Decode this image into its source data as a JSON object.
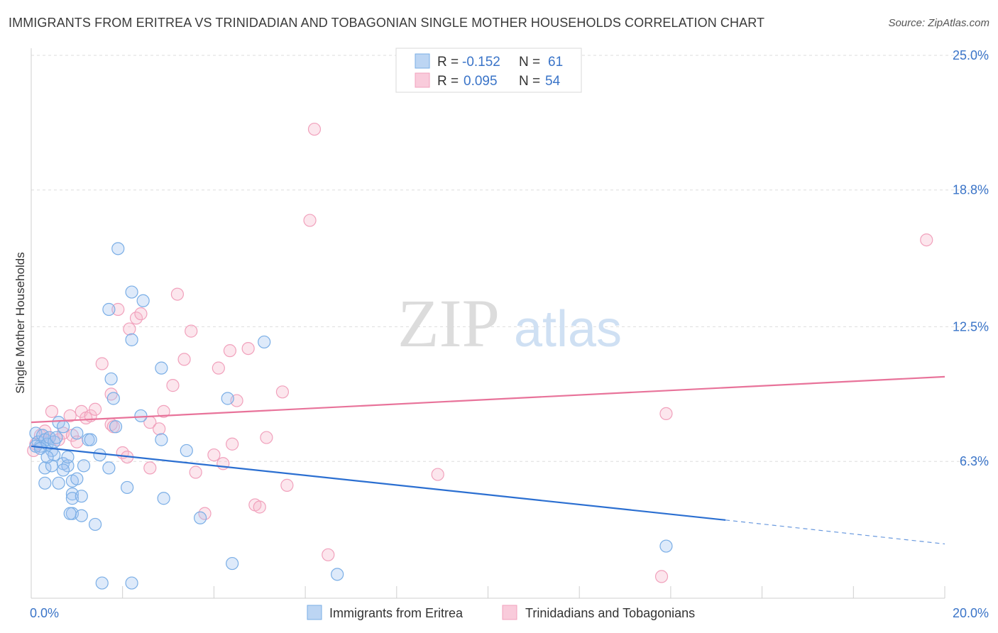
{
  "title": "IMMIGRANTS FROM ERITREA VS TRINIDADIAN AND TOBAGONIAN SINGLE MOTHER HOUSEHOLDS CORRELATION CHART",
  "source": "Source: ZipAtlas.com",
  "watermark": {
    "zip": "ZIP",
    "atlas": "atlas"
  },
  "colors": {
    "blue": "#7aaee6",
    "blue_line": "#2b6fd1",
    "pink": "#f1a1bc",
    "pink_line": "#e8739a",
    "axis_text": "#3a74c8"
  },
  "legend_top": [
    {
      "r_label": "R = ",
      "r_value": "-0.152",
      "n_label": "N = ",
      "n_value": "61",
      "color": "blue"
    },
    {
      "r_label": "R = ",
      "r_value": "0.095",
      "n_label": "N = ",
      "n_value": "54",
      "color": "pink"
    }
  ],
  "legend_bottom": [
    {
      "label": "Immigrants from Eritrea",
      "color": "blue"
    },
    {
      "label": "Trinidadians and Tobagonians",
      "color": "pink"
    }
  ],
  "chart_data": {
    "type": "scatter",
    "title": "IMMIGRANTS FROM ERITREA VS TRINIDADIAN AND TOBAGONIAN SINGLE MOTHER HOUSEHOLDS CORRELATION CHART",
    "ylabel": "Single Mother Households",
    "xlim": [
      0,
      20
    ],
    "ylim": [
      0,
      25
    ],
    "x_tick_labels": [
      {
        "value": 0,
        "label": "0.0%"
      },
      {
        "value": 20,
        "label": "20.0%"
      }
    ],
    "y_tick_labels": [
      {
        "value": 6.3,
        "label": "6.3%"
      },
      {
        "value": 12.5,
        "label": "12.5%"
      },
      {
        "value": 18.8,
        "label": "18.8%"
      },
      {
        "value": 25.0,
        "label": "25.0%"
      }
    ],
    "grid": true,
    "series": [
      {
        "name": "Immigrants from Eritrea",
        "color": "blue",
        "trend": {
          "x0": 0,
          "y0": 7.0,
          "x1": 15.2,
          "y1": 3.6,
          "x_end": 20,
          "y_end": 2.5
        },
        "points": [
          [
            0.1,
            7.6
          ],
          [
            0.15,
            7.2
          ],
          [
            0.2,
            7.0
          ],
          [
            0.25,
            7.5
          ],
          [
            0.3,
            7.3
          ],
          [
            0.35,
            7.1
          ],
          [
            0.4,
            7.4
          ],
          [
            0.45,
            6.8
          ],
          [
            0.5,
            7.2
          ],
          [
            0.55,
            7.4
          ],
          [
            0.6,
            8.1
          ],
          [
            0.7,
            7.9
          ],
          [
            0.5,
            6.6
          ],
          [
            0.3,
            6.0
          ],
          [
            0.45,
            6.1
          ],
          [
            0.7,
            6.2
          ],
          [
            0.8,
            6.1
          ],
          [
            0.7,
            5.9
          ],
          [
            0.6,
            5.3
          ],
          [
            0.3,
            5.3
          ],
          [
            0.9,
            5.4
          ],
          [
            1.0,
            5.5
          ],
          [
            0.9,
            4.8
          ],
          [
            0.9,
            4.6
          ],
          [
            1.15,
            6.1
          ],
          [
            0.9,
            3.9
          ],
          [
            1.1,
            3.8
          ],
          [
            0.85,
            3.9
          ],
          [
            1.1,
            4.7
          ],
          [
            1.4,
            3.4
          ],
          [
            1.25,
            7.3
          ],
          [
            1.3,
            7.3
          ],
          [
            1.5,
            6.6
          ],
          [
            1.7,
            6.0
          ],
          [
            1.85,
            7.9
          ],
          [
            1.8,
            9.2
          ],
          [
            1.75,
            10.1
          ],
          [
            1.7,
            13.3
          ],
          [
            1.9,
            16.1
          ],
          [
            2.2,
            14.1
          ],
          [
            2.45,
            13.7
          ],
          [
            2.2,
            11.9
          ],
          [
            2.85,
            10.6
          ],
          [
            2.1,
            5.1
          ],
          [
            2.4,
            8.4
          ],
          [
            2.85,
            7.3
          ],
          [
            2.9,
            4.6
          ],
          [
            3.4,
            6.8
          ],
          [
            3.7,
            3.7
          ],
          [
            4.3,
            9.2
          ],
          [
            5.1,
            11.8
          ],
          [
            4.4,
            1.6
          ],
          [
            6.7,
            1.1
          ],
          [
            2.2,
            0.7
          ],
          [
            1.55,
            0.7
          ],
          [
            13.9,
            2.4
          ],
          [
            0.1,
            7.0
          ],
          [
            0.2,
            6.9
          ],
          [
            0.35,
            6.5
          ],
          [
            0.8,
            6.5
          ],
          [
            1.0,
            7.6
          ]
        ]
      },
      {
        "name": "Trinidadians and Tobagonians",
        "color": "pink",
        "trend": {
          "x0": 0,
          "y0": 8.1,
          "x1": 20,
          "y1": 10.2
        },
        "points": [
          [
            0.1,
            7.1
          ],
          [
            0.2,
            7.5
          ],
          [
            0.3,
            7.7
          ],
          [
            0.4,
            7.4
          ],
          [
            0.45,
            8.6
          ],
          [
            0.6,
            7.3
          ],
          [
            0.7,
            7.6
          ],
          [
            0.9,
            7.5
          ],
          [
            0.85,
            8.4
          ],
          [
            1.1,
            8.6
          ],
          [
            1.2,
            8.3
          ],
          [
            1.3,
            8.4
          ],
          [
            1.4,
            8.7
          ],
          [
            1.55,
            10.8
          ],
          [
            1.75,
            9.4
          ],
          [
            1.75,
            8.0
          ],
          [
            1.8,
            7.9
          ],
          [
            1.9,
            13.3
          ],
          [
            2.0,
            6.7
          ],
          [
            2.1,
            6.5
          ],
          [
            2.15,
            12.4
          ],
          [
            2.3,
            12.9
          ],
          [
            2.4,
            13.1
          ],
          [
            2.6,
            8.1
          ],
          [
            2.6,
            6.0
          ],
          [
            2.8,
            7.8
          ],
          [
            2.9,
            8.6
          ],
          [
            3.1,
            9.8
          ],
          [
            3.2,
            14.0
          ],
          [
            3.35,
            11.0
          ],
          [
            3.5,
            12.3
          ],
          [
            3.6,
            5.8
          ],
          [
            3.8,
            3.9
          ],
          [
            4.0,
            6.6
          ],
          [
            4.1,
            10.6
          ],
          [
            4.35,
            11.4
          ],
          [
            4.4,
            7.1
          ],
          [
            4.5,
            9.1
          ],
          [
            4.75,
            11.5
          ],
          [
            4.9,
            4.3
          ],
          [
            5.0,
            4.2
          ],
          [
            5.15,
            7.4
          ],
          [
            5.5,
            9.5
          ],
          [
            5.6,
            5.2
          ],
          [
            6.2,
            21.6
          ],
          [
            6.1,
            17.4
          ],
          [
            6.5,
            2.0
          ],
          [
            8.9,
            5.7
          ],
          [
            13.8,
            1.0
          ],
          [
            13.9,
            8.5
          ],
          [
            19.6,
            16.5
          ],
          [
            4.2,
            6.2
          ],
          [
            1.0,
            7.2
          ],
          [
            0.05,
            6.8
          ]
        ]
      }
    ]
  }
}
